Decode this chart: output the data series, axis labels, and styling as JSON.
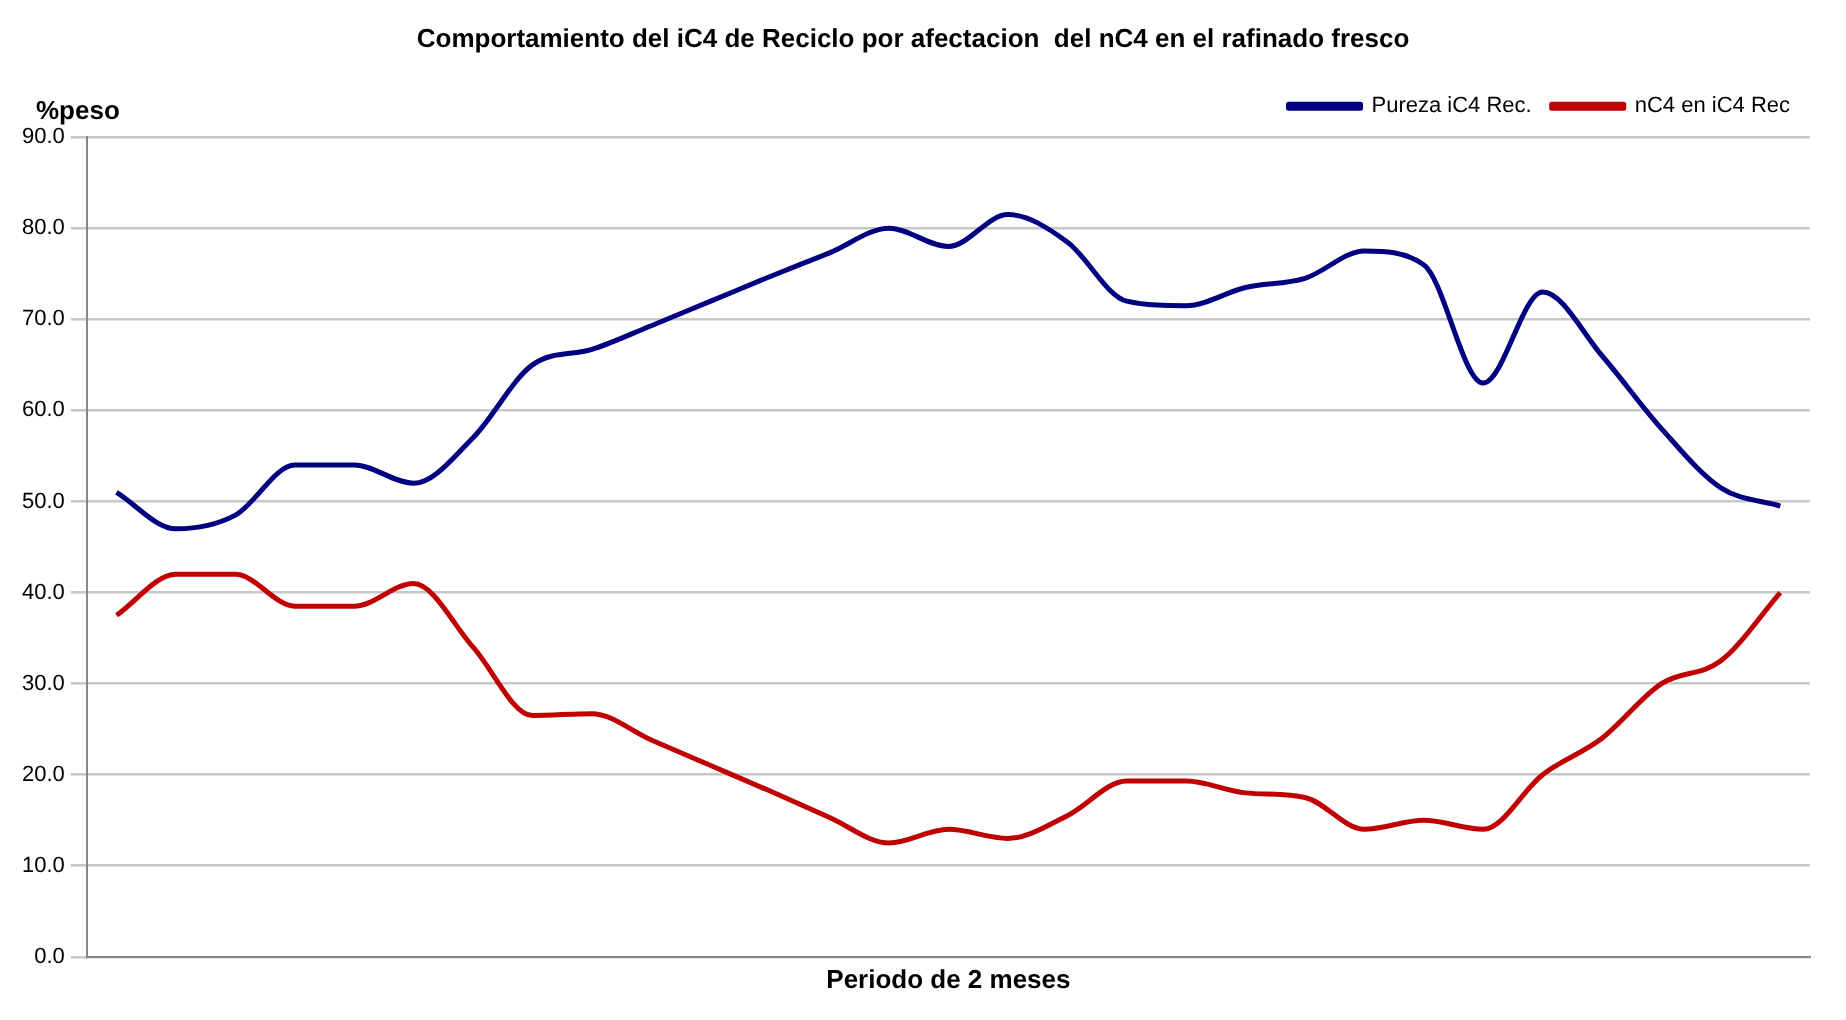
{
  "chart_data": {
    "type": "line",
    "title": "Comportamiento del iC4 de Reciclo por afectacion  del nC4 en el rafinado fresco",
    "xlabel": "Periodo de 2 meses",
    "ylabel": "%peso",
    "categories": [
      null,
      null,
      null,
      null,
      null,
      null,
      null,
      null,
      null,
      null,
      null,
      null,
      null,
      null,
      null,
      null,
      null,
      null,
      null,
      null,
      null,
      null,
      null,
      null,
      null,
      null,
      null,
      null,
      null
    ],
    "series": [
      {
        "name": "Pureza iC4 Rec.",
        "color": "#000080",
        "values": [
          51,
          47,
          48.5,
          54,
          54,
          52,
          57,
          65,
          66.7,
          69.3,
          72,
          74.7,
          77.3,
          80,
          78,
          81.5,
          78.5,
          72,
          71.5,
          73.5,
          74.5,
          77.5,
          76,
          63,
          73,
          66,
          58,
          51.5,
          49.5
        ]
      },
      {
        "name": "nC4 en iC4 Rec",
        "color": "#c00000",
        "values": [
          37.5,
          42,
          42,
          38.5,
          38.5,
          41,
          34,
          26.5,
          26.7,
          23.8,
          21,
          18.2,
          15.3,
          12.5,
          14,
          13,
          15.5,
          19.3,
          19.3,
          18,
          17.5,
          14,
          15,
          14,
          20,
          24,
          30,
          32.5,
          40
        ]
      }
    ],
    "ylim": [
      0,
      90
    ],
    "yticks": [
      {
        "value": 0,
        "label": "0.0"
      },
      {
        "value": 10,
        "label": "10.0"
      },
      {
        "value": 20,
        "label": "20.0"
      },
      {
        "value": 30,
        "label": "30.0"
      },
      {
        "value": 40,
        "label": "40.0"
      },
      {
        "value": 50,
        "label": "50.0"
      },
      {
        "value": 60,
        "label": "60.0"
      },
      {
        "value": 70,
        "label": "70.0"
      },
      {
        "value": 80,
        "label": "80.0"
      },
      {
        "value": 90,
        "label": "90.0"
      }
    ],
    "grid": "y",
    "legend": "top right",
    "tick_labels": "y",
    "marker": "none",
    "line_style": "solid"
  }
}
